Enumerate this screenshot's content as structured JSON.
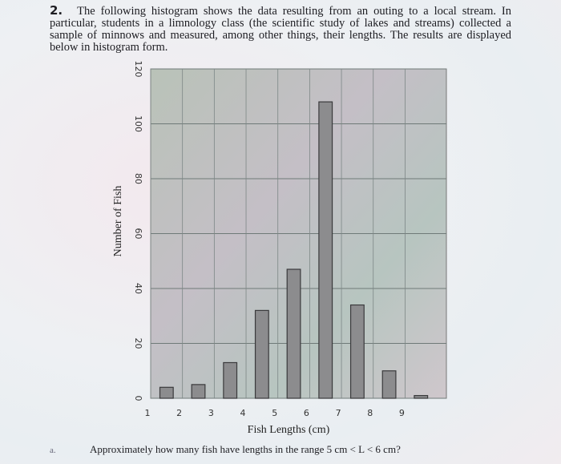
{
  "problem": {
    "number": "2.",
    "text": "The following histogram shows the data resulting from an outing to a local stream. In particular, students in a limnology class (the scientific study of lakes and streams) collected a sample of minnows and measured, among other things, their lengths. The results are displayed below in histogram form."
  },
  "chart_data": {
    "type": "histogram",
    "x_label": "Fish Lengths (cm)",
    "y_label": "Number of Fish",
    "bins": [
      1,
      2,
      3,
      4,
      5,
      6,
      7,
      8,
      9,
      10
    ],
    "values": [
      4,
      5,
      13,
      32,
      47,
      108,
      34,
      10,
      1
    ],
    "color": "#8c8c8e",
    "xlim": [
      1,
      10.3
    ],
    "xticks": [
      1,
      2,
      3,
      4,
      5,
      6,
      7,
      8,
      9
    ],
    "ylim": [
      0,
      120
    ],
    "yticks": [
      0,
      20,
      40,
      60,
      80,
      100,
      120
    ],
    "grid": true
  },
  "question": {
    "label": "a.",
    "text": "Approximately how many fish have lengths in the range 5 cm < L < 6 cm?"
  }
}
